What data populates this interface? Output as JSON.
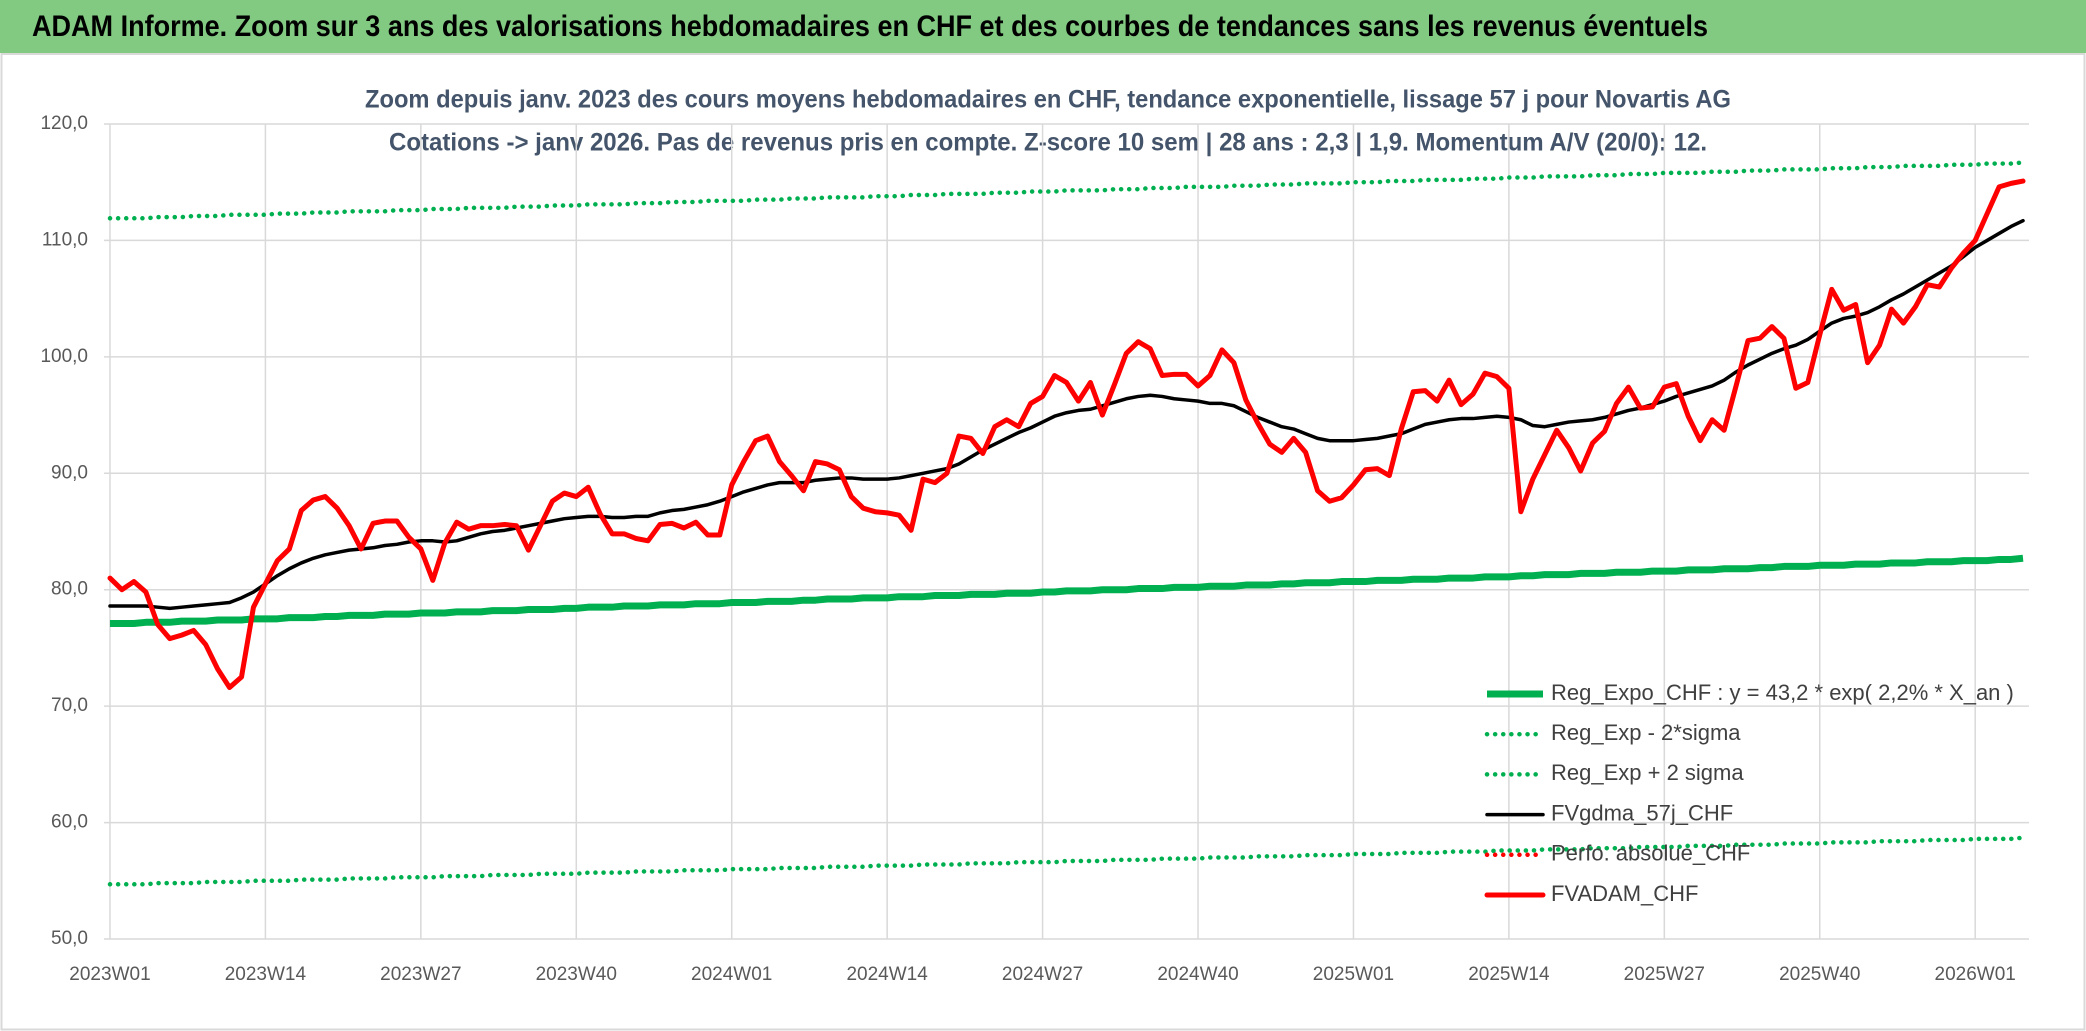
{
  "header": {
    "title": "ADAM Informe. Zoom sur 3 ans des valorisations hebdomadaires en CHF et des courbes de tendances sans les revenus éventuels"
  },
  "chart_data": {
    "type": "line",
    "title": "Zoom depuis janv. 2023 des cours moyens hebdomadaires en CHF, tendance exponentielle, lissage 57 j pour Novartis AG",
    "subtitle": "Cotations -> janv 2026. Pas de revenus pris en compte. Z-score 10 sem | 28 ans : 2,3 | 1,9. Momentum A/V (20/0): 12.",
    "categories": [
      "2023W01",
      null,
      null,
      null,
      null,
      null,
      null,
      null,
      null,
      null,
      null,
      null,
      null,
      "2023W14",
      null,
      null,
      null,
      null,
      null,
      null,
      null,
      null,
      null,
      null,
      null,
      null,
      "2023W27",
      null,
      null,
      null,
      null,
      null,
      null,
      null,
      null,
      null,
      null,
      null,
      null,
      "2023W40",
      null,
      null,
      null,
      null,
      null,
      null,
      null,
      null,
      null,
      null,
      null,
      null,
      "2024W01",
      null,
      null,
      null,
      null,
      null,
      null,
      null,
      null,
      null,
      null,
      null,
      null,
      "2024W14",
      null,
      null,
      null,
      null,
      null,
      null,
      null,
      null,
      null,
      null,
      null,
      null,
      "2024W27",
      null,
      null,
      null,
      null,
      null,
      null,
      null,
      null,
      null,
      null,
      null,
      null,
      "2024W40",
      null,
      null,
      null,
      null,
      null,
      null,
      null,
      null,
      null,
      null,
      null,
      null,
      "2025W01",
      null,
      null,
      null,
      null,
      null,
      null,
      null,
      null,
      null,
      null,
      null,
      null,
      "2025W14",
      null,
      null,
      null,
      null,
      null,
      null,
      null,
      null,
      null,
      null,
      null,
      null,
      "2025W27",
      null,
      null,
      null,
      null,
      null,
      null,
      null,
      null,
      null,
      null,
      null,
      null,
      "2025W40",
      null,
      null,
      null,
      null,
      null,
      null,
      null,
      null,
      null,
      null,
      null,
      null,
      "2026W01",
      null,
      null,
      null,
      null
    ],
    "ylim": [
      50,
      120
    ],
    "yticks": [
      {
        "value": 50,
        "label": "50,0"
      },
      {
        "value": 60,
        "label": "60,0"
      },
      {
        "value": 70,
        "label": "70,0"
      },
      {
        "value": 80,
        "label": "80,0"
      },
      {
        "value": 90,
        "label": "90,0"
      },
      {
        "value": 100,
        "label": "100,0"
      },
      {
        "value": 110,
        "label": "110,0"
      },
      {
        "value": 120,
        "label": "120,0"
      }
    ],
    "grid": true,
    "legend": "lower right",
    "series": [
      {
        "name": "Reg_Expo_CHF : y = 43,2 * exp( 2,2% *  X_an )",
        "color": "#00b050",
        "line_style": "thick",
        "values": [
          77.1,
          77.1,
          77.1,
          77.2,
          77.2,
          77.2,
          77.3,
          77.3,
          77.3,
          77.4,
          77.4,
          77.4,
          77.5,
          77.5,
          77.5,
          77.6,
          77.6,
          77.6,
          77.7,
          77.7,
          77.8,
          77.8,
          77.8,
          77.9,
          77.9,
          77.9,
          78.0,
          78.0,
          78.0,
          78.1,
          78.1,
          78.1,
          78.2,
          78.2,
          78.2,
          78.3,
          78.3,
          78.3,
          78.4,
          78.4,
          78.5,
          78.5,
          78.5,
          78.6,
          78.6,
          78.6,
          78.7,
          78.7,
          78.7,
          78.8,
          78.8,
          78.8,
          78.9,
          78.9,
          78.9,
          79.0,
          79.0,
          79.0,
          79.1,
          79.1,
          79.2,
          79.2,
          79.2,
          79.3,
          79.3,
          79.3,
          79.4,
          79.4,
          79.4,
          79.5,
          79.5,
          79.5,
          79.6,
          79.6,
          79.6,
          79.7,
          79.7,
          79.7,
          79.8,
          79.8,
          79.9,
          79.9,
          79.9,
          80.0,
          80.0,
          80.0,
          80.1,
          80.1,
          80.1,
          80.2,
          80.2,
          80.2,
          80.3,
          80.3,
          80.3,
          80.4,
          80.4,
          80.4,
          80.5,
          80.5,
          80.6,
          80.6,
          80.6,
          80.7,
          80.7,
          80.7,
          80.8,
          80.8,
          80.8,
          80.9,
          80.9,
          80.9,
          81.0,
          81.0,
          81.0,
          81.1,
          81.1,
          81.1,
          81.2,
          81.2,
          81.3,
          81.3,
          81.3,
          81.4,
          81.4,
          81.4,
          81.5,
          81.5,
          81.5,
          81.6,
          81.6,
          81.6,
          81.7,
          81.7,
          81.7,
          81.8,
          81.8,
          81.8,
          81.9,
          81.9,
          82.0,
          82.0,
          82.0,
          82.1,
          82.1,
          82.1,
          82.2,
          82.2,
          82.2,
          82.3,
          82.3,
          82.3,
          82.4,
          82.4,
          82.4,
          82.5,
          82.5,
          82.5,
          82.6,
          82.6,
          82.7
        ]
      },
      {
        "name": "Reg_Exp - 2*sigma",
        "color": "#00b050",
        "line_style": "dotted",
        "values": [
          54.7,
          54.7,
          54.7,
          54.7,
          54.8,
          54.8,
          54.8,
          54.8,
          54.9,
          54.9,
          54.9,
          54.9,
          55.0,
          55.0,
          55.0,
          55.0,
          55.1,
          55.1,
          55.1,
          55.1,
          55.2,
          55.2,
          55.2,
          55.2,
          55.3,
          55.3,
          55.3,
          55.3,
          55.4,
          55.4,
          55.4,
          55.4,
          55.5,
          55.5,
          55.5,
          55.5,
          55.6,
          55.6,
          55.6,
          55.6,
          55.7,
          55.7,
          55.7,
          55.7,
          55.8,
          55.8,
          55.8,
          55.8,
          55.9,
          55.9,
          55.9,
          55.9,
          56.0,
          56.0,
          56.0,
          56.0,
          56.1,
          56.1,
          56.1,
          56.1,
          56.2,
          56.2,
          56.2,
          56.2,
          56.3,
          56.3,
          56.3,
          56.3,
          56.4,
          56.4,
          56.4,
          56.4,
          56.5,
          56.5,
          56.5,
          56.5,
          56.6,
          56.6,
          56.6,
          56.6,
          56.7,
          56.7,
          56.7,
          56.7,
          56.8,
          56.8,
          56.8,
          56.8,
          56.9,
          56.9,
          56.9,
          56.9,
          57.0,
          57.0,
          57.0,
          57.0,
          57.1,
          57.1,
          57.1,
          57.1,
          57.2,
          57.2,
          57.2,
          57.2,
          57.3,
          57.3,
          57.3,
          57.3,
          57.4,
          57.4,
          57.4,
          57.4,
          57.5,
          57.5,
          57.5,
          57.5,
          57.6,
          57.6,
          57.6,
          57.6,
          57.7,
          57.7,
          57.7,
          57.7,
          57.8,
          57.8,
          57.8,
          57.8,
          57.9,
          57.9,
          57.9,
          57.9,
          58.0,
          58.0,
          58.0,
          58.0,
          58.1,
          58.1,
          58.1,
          58.1,
          58.2,
          58.2,
          58.2,
          58.2,
          58.3,
          58.3,
          58.3,
          58.3,
          58.4,
          58.4,
          58.4,
          58.4,
          58.5,
          58.5,
          58.5,
          58.5,
          58.6,
          58.6,
          58.6,
          58.6,
          58.7
        ]
      },
      {
        "name": "Reg_Exp + 2 sigma",
        "color": "#00b050",
        "line_style": "dotted",
        "values": [
          111.9,
          111.9,
          111.9,
          111.9,
          112.0,
          112.0,
          112.0,
          112.1,
          112.1,
          112.1,
          112.2,
          112.2,
          112.2,
          112.2,
          112.3,
          112.3,
          112.3,
          112.4,
          112.4,
          112.4,
          112.5,
          112.5,
          112.5,
          112.5,
          112.6,
          112.6,
          112.6,
          112.7,
          112.7,
          112.7,
          112.8,
          112.8,
          112.8,
          112.8,
          112.9,
          112.9,
          112.9,
          113.0,
          113.0,
          113.0,
          113.1,
          113.1,
          113.1,
          113.1,
          113.2,
          113.2,
          113.2,
          113.3,
          113.3,
          113.3,
          113.4,
          113.4,
          113.4,
          113.4,
          113.5,
          113.5,
          113.5,
          113.6,
          113.6,
          113.6,
          113.7,
          113.7,
          113.7,
          113.7,
          113.8,
          113.8,
          113.8,
          113.9,
          113.9,
          113.9,
          114.0,
          114.0,
          114.0,
          114.0,
          114.1,
          114.1,
          114.1,
          114.2,
          114.2,
          114.2,
          114.3,
          114.3,
          114.3,
          114.3,
          114.4,
          114.4,
          114.4,
          114.5,
          114.5,
          114.5,
          114.6,
          114.6,
          114.6,
          114.6,
          114.7,
          114.7,
          114.7,
          114.8,
          114.8,
          114.8,
          114.9,
          114.9,
          114.9,
          114.9,
          115.0,
          115.0,
          115.0,
          115.1,
          115.1,
          115.1,
          115.2,
          115.2,
          115.2,
          115.2,
          115.3,
          115.3,
          115.3,
          115.4,
          115.4,
          115.4,
          115.5,
          115.5,
          115.5,
          115.5,
          115.6,
          115.6,
          115.6,
          115.7,
          115.7,
          115.7,
          115.8,
          115.8,
          115.8,
          115.8,
          115.9,
          115.9,
          115.9,
          116.0,
          116.0,
          116.0,
          116.1,
          116.1,
          116.1,
          116.1,
          116.2,
          116.2,
          116.2,
          116.3,
          116.3,
          116.3,
          116.4,
          116.4,
          116.4,
          116.4,
          116.5,
          116.5,
          116.5,
          116.6,
          116.6,
          116.6,
          116.7
        ]
      },
      {
        "name": "FVgdma_57j_CHF",
        "color": "#000000",
        "line_style": "solid",
        "values": [
          78.6,
          78.6,
          78.6,
          78.6,
          78.5,
          78.4,
          78.5,
          78.6,
          78.7,
          78.8,
          78.9,
          79.3,
          79.8,
          80.5,
          81.2,
          81.8,
          82.3,
          82.7,
          83.0,
          83.2,
          83.4,
          83.5,
          83.6,
          83.8,
          83.9,
          84.1,
          84.2,
          84.2,
          84.1,
          84.2,
          84.5,
          84.8,
          85.0,
          85.1,
          85.3,
          85.5,
          85.7,
          85.9,
          86.1,
          86.2,
          86.3,
          86.3,
          86.2,
          86.2,
          86.3,
          86.3,
          86.6,
          86.8,
          86.9,
          87.1,
          87.3,
          87.6,
          88.0,
          88.4,
          88.7,
          89.0,
          89.2,
          89.2,
          89.2,
          89.4,
          89.5,
          89.6,
          89.6,
          89.5,
          89.5,
          89.5,
          89.6,
          89.8,
          90.0,
          90.2,
          90.4,
          90.8,
          91.4,
          92.0,
          92.5,
          93.0,
          93.5,
          93.9,
          94.4,
          94.9,
          95.2,
          95.4,
          95.5,
          95.8,
          96.1,
          96.4,
          96.6,
          96.7,
          96.6,
          96.4,
          96.3,
          96.2,
          96.0,
          96.0,
          95.8,
          95.3,
          94.8,
          94.4,
          94.0,
          93.8,
          93.4,
          93.0,
          92.8,
          92.8,
          92.8,
          92.9,
          93.0,
          93.2,
          93.4,
          93.8,
          94.2,
          94.4,
          94.6,
          94.7,
          94.7,
          94.8,
          94.9,
          94.8,
          94.6,
          94.1,
          94.0,
          94.2,
          94.4,
          94.5,
          94.6,
          94.8,
          95.1,
          95.4,
          95.6,
          95.9,
          96.2,
          96.6,
          96.9,
          97.2,
          97.5,
          98.0,
          98.7,
          99.3,
          99.8,
          100.3,
          100.7,
          101.0,
          101.5,
          102.2,
          102.9,
          103.3,
          103.5,
          103.8,
          104.3,
          104.9,
          105.4,
          106.0,
          106.6,
          107.2,
          107.8,
          108.6,
          109.4,
          110.0,
          110.6,
          111.2,
          111.7
        ]
      },
      {
        "name": "Perfo. absolue_CHF",
        "color": "#ff0000",
        "line_style": "dotted",
        "values": [
          null,
          null,
          null,
          null,
          null,
          null,
          null,
          null,
          null,
          null,
          null,
          null,
          null,
          null,
          null,
          null,
          null,
          null,
          null,
          null,
          null,
          null,
          null,
          null,
          null,
          null,
          null,
          null,
          null,
          null,
          null,
          null,
          null,
          null,
          null,
          null,
          null,
          null,
          null,
          null,
          null,
          null,
          null,
          null,
          null,
          null,
          null,
          null,
          null,
          null,
          null,
          null,
          null,
          null,
          null,
          null,
          null,
          null,
          null,
          null,
          null,
          null,
          null,
          null,
          null,
          null,
          null,
          null,
          null,
          null,
          null,
          null,
          null,
          null,
          null,
          null,
          null,
          null,
          null,
          null,
          null,
          null,
          null,
          null,
          null,
          null,
          null,
          null,
          null,
          null,
          null,
          null,
          null,
          null,
          null,
          null,
          null,
          null,
          null,
          null,
          null,
          null,
          null,
          null,
          null,
          null,
          null,
          null,
          null,
          null,
          null,
          null,
          null,
          null,
          null,
          null,
          null,
          null,
          null,
          null,
          null,
          null,
          null,
          null,
          null,
          null,
          null,
          null,
          null,
          null,
          null,
          null,
          null,
          null,
          null,
          null,
          null,
          null,
          null,
          null,
          null,
          null,
          null,
          null,
          null,
          null,
          null,
          null,
          null,
          null,
          null,
          null,
          null,
          null,
          null,
          null,
          null,
          null,
          null,
          null,
          null
        ]
      },
      {
        "name": "FVADAM_CHF",
        "color": "#ff0000",
        "line_style": "bold",
        "values": [
          81.0,
          80.0,
          80.7,
          79.8,
          77.0,
          75.8,
          76.1,
          76.5,
          75.3,
          73.2,
          71.6,
          72.5,
          78.5,
          80.5,
          82.5,
          83.5,
          86.8,
          87.7,
          88.0,
          87.0,
          85.5,
          83.5,
          85.7,
          85.9,
          85.9,
          84.5,
          83.5,
          80.8,
          84.0,
          85.8,
          85.2,
          85.5,
          85.5,
          85.6,
          85.5,
          83.4,
          85.5,
          87.6,
          88.3,
          88.0,
          88.8,
          86.5,
          84.8,
          84.8,
          84.4,
          84.2,
          85.6,
          85.7,
          85.3,
          85.8,
          84.7,
          84.7,
          89.0,
          91.0,
          92.8,
          93.2,
          91.0,
          89.8,
          88.5,
          91.0,
          90.8,
          90.3,
          88.0,
          87.0,
          86.7,
          86.6,
          86.4,
          85.1,
          89.5,
          89.2,
          90.0,
          93.2,
          93.0,
          91.7,
          94.0,
          94.6,
          94.0,
          96.0,
          96.6,
          98.4,
          97.8,
          96.2,
          97.8,
          95.0,
          97.6,
          100.3,
          101.3,
          100.7,
          98.4,
          98.5,
          98.5,
          97.5,
          98.4,
          100.6,
          99.5,
          96.3,
          94.3,
          92.5,
          91.8,
          93.0,
          91.8,
          88.5,
          87.6,
          87.9,
          89.0,
          90.3,
          90.4,
          89.8,
          93.8,
          97.0,
          97.1,
          96.2,
          98.0,
          95.9,
          96.8,
          98.6,
          98.3,
          97.3,
          86.7,
          89.5,
          91.6,
          93.7,
          92.2,
          90.2,
          92.6,
          93.6,
          96.0,
          97.4,
          95.6,
          95.7,
          97.4,
          97.7,
          94.9,
          92.8,
          94.6,
          93.7,
          97.5,
          101.4,
          101.6,
          102.6,
          101.6,
          97.3,
          97.8,
          101.9,
          105.8,
          104.0,
          104.5,
          99.5,
          101.0,
          104.1,
          102.9,
          104.3,
          106.2,
          106.0,
          107.6,
          108.9,
          110.0,
          112.3,
          114.6,
          114.9,
          115.1
        ]
      }
    ]
  }
}
